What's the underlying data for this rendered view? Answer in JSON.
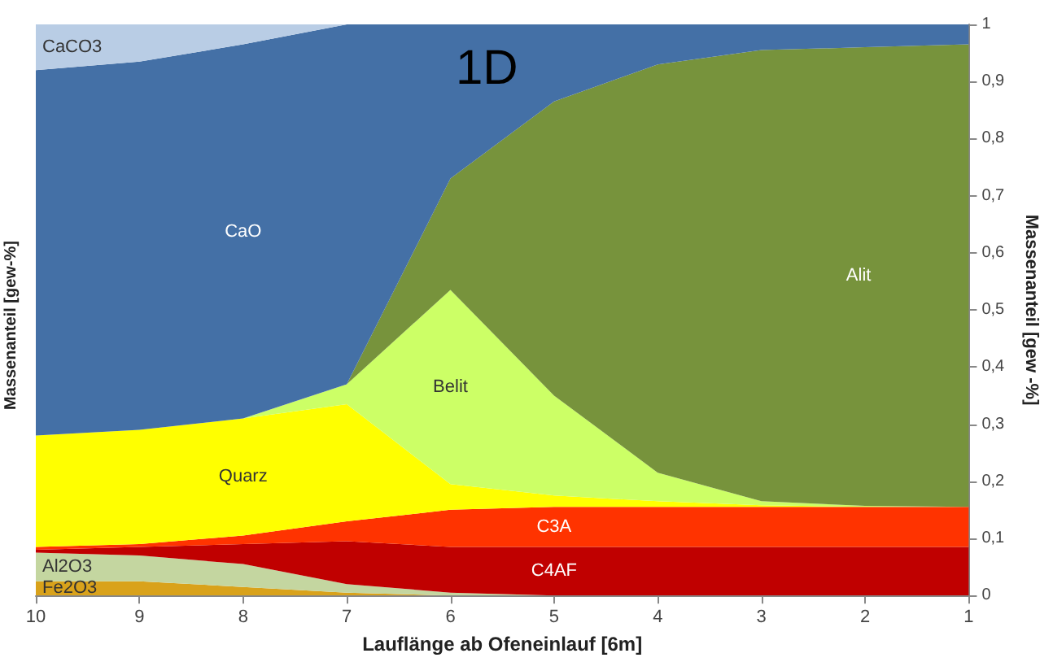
{
  "chart_data": {
    "type": "area",
    "stacked": true,
    "title": "1D",
    "xlabel": "Lauflänge ab Ofeneinlauf [6m]",
    "ylabel": "Massenanteil [gew -%]",
    "annotations": [
      "Massenanteil [gew-%]"
    ],
    "x": [
      10,
      9,
      8,
      7,
      6,
      5,
      4,
      3,
      2,
      1
    ],
    "xlim": [
      10,
      1
    ],
    "xticks": [
      10,
      9,
      8,
      7,
      6,
      5,
      4,
      3,
      2,
      1
    ],
    "ylim": [
      0,
      1
    ],
    "yticks": [
      0,
      {
        "value": 0.1,
        "label": "0,1"
      },
      {
        "value": 0.2,
        "label": "0,2"
      },
      {
        "value": 0.3,
        "label": "0,3"
      },
      {
        "value": 0.4,
        "label": "0,4"
      },
      {
        "value": 0.5,
        "label": "0,5"
      },
      {
        "value": 0.6,
        "label": "0,6"
      },
      {
        "value": 0.7,
        "label": "0,7"
      },
      {
        "value": 0.8,
        "label": "0,8"
      },
      {
        "value": 0.9,
        "label": "0,9"
      },
      1
    ],
    "grid": false,
    "legend": false,
    "series": [
      {
        "name": "Fe2O3",
        "color": "#d9a21b",
        "values": [
          0.025,
          0.025,
          0.015,
          0.005,
          0,
          0,
          0,
          0,
          0,
          0
        ]
      },
      {
        "name": "Al2O3",
        "color": "#c4d6a0",
        "values": [
          0.05,
          0.045,
          0.04,
          0.015,
          0.005,
          0,
          0,
          0,
          0,
          0
        ]
      },
      {
        "name": "C4AF",
        "color": "#c00000",
        "values": [
          0.005,
          0.015,
          0.035,
          0.075,
          0.08,
          0.085,
          0.085,
          0.085,
          0.085,
          0.085
        ]
      },
      {
        "name": "C3A",
        "color": "#ff3300",
        "values": [
          0.005,
          0.005,
          0.015,
          0.035,
          0.065,
          0.07,
          0.07,
          0.07,
          0.07,
          0.07
        ]
      },
      {
        "name": "Quarz",
        "color": "#ffff00",
        "values": [
          0.195,
          0.2,
          0.205,
          0.205,
          0.045,
          0.02,
          0.01,
          0.003,
          0,
          0
        ]
      },
      {
        "name": "Belit",
        "color": "#ccff66",
        "values": [
          0,
          0,
          0,
          0.035,
          0.34,
          0.175,
          0.05,
          0.007,
          0.002,
          0
        ]
      },
      {
        "name": "Alit",
        "color": "#77933c",
        "values": [
          0,
          0,
          0,
          0,
          0.195,
          0.515,
          0.715,
          0.79,
          0.803,
          0.81
        ]
      },
      {
        "name": "CaO",
        "color": "#4470a6",
        "values": [
          0.64,
          0.645,
          0.655,
          0.63,
          0.27,
          0.135,
          0.07,
          0.045,
          0.04,
          0.035
        ]
      },
      {
        "name": "CaCO3",
        "color": "#b9cde5",
        "values": [
          0.08,
          0.065,
          0.035,
          0,
          0,
          0,
          0,
          0,
          0,
          0
        ]
      }
    ]
  }
}
